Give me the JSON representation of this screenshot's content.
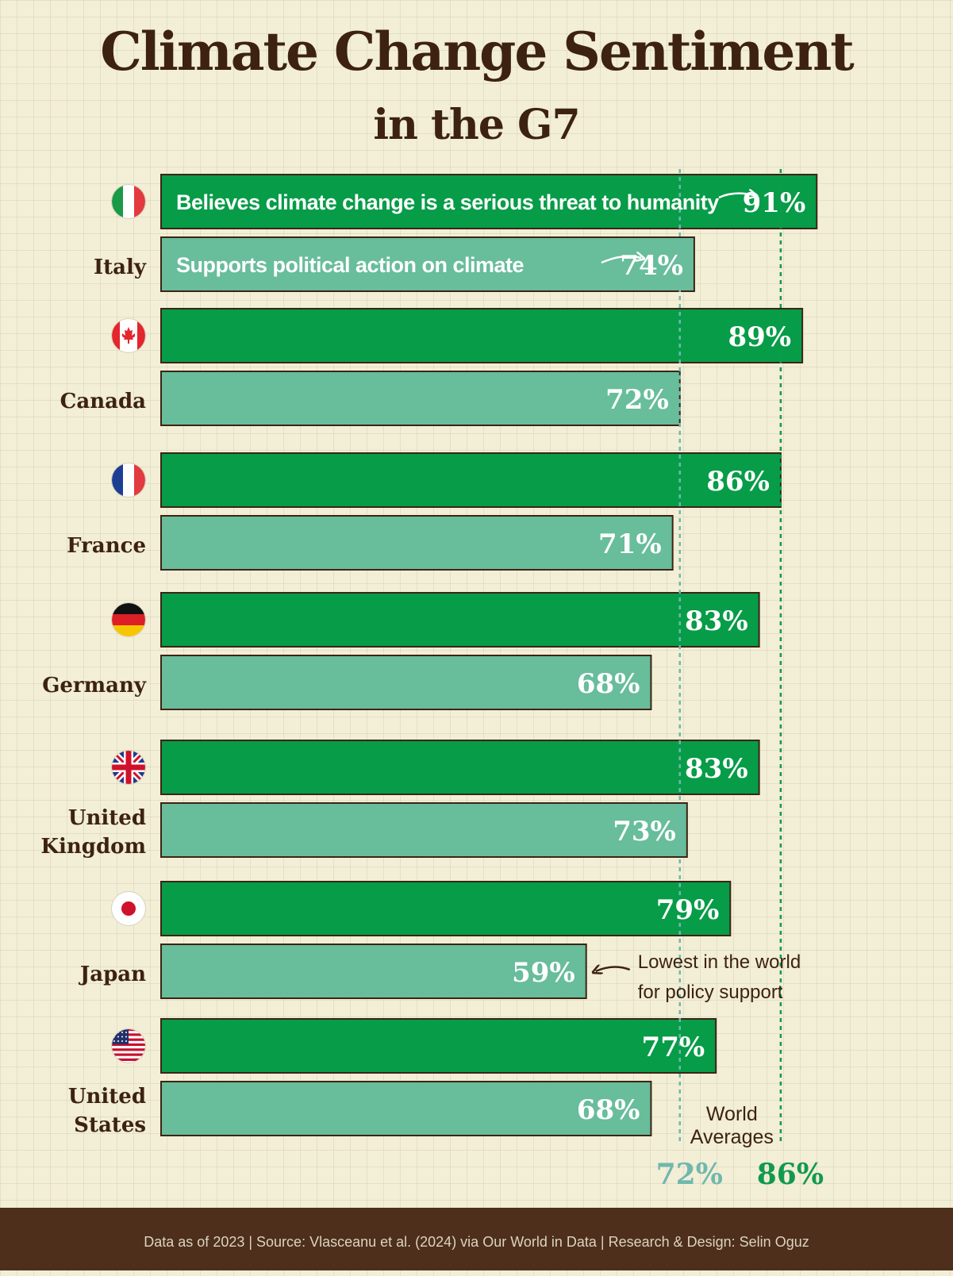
{
  "header": {
    "title": "Climate Change Sentiment",
    "subtitle": "in the G7"
  },
  "colors": {
    "threat": "#079c48",
    "action": "#68bd9b",
    "outline": "#3d2414",
    "text_dark": "#3d2212",
    "bar_text": "#ffffff",
    "avg_action": "#6fb8ad",
    "avg_threat": "#119a4d"
  },
  "chart_data": {
    "type": "bar",
    "orientation": "horizontal",
    "title": "Climate Change Sentiment in the G7",
    "categories": [
      "Italy",
      "Canada",
      "France",
      "Germany",
      "United Kingdom",
      "Japan",
      "United States"
    ],
    "category_lines": [
      [
        "Italy"
      ],
      [
        "Canada"
      ],
      [
        "France"
      ],
      [
        "Germany"
      ],
      [
        "United",
        "Kingdom"
      ],
      [
        "Japan"
      ],
      [
        "United",
        "States"
      ]
    ],
    "flags": [
      "italy-flag",
      "canada-flag",
      "france-flag",
      "germany-flag",
      "uk-flag",
      "japan-flag",
      "usa-flag"
    ],
    "series": [
      {
        "name": "Believes climate change is a serious threat to humanity",
        "values": [
          91,
          89,
          86,
          83,
          83,
          79,
          77
        ],
        "labels": [
          "91%",
          "89%",
          "86%",
          "83%",
          "83%",
          "79%",
          "77%"
        ]
      },
      {
        "name": "Supports political action on climate",
        "values": [
          74,
          72,
          71,
          68,
          73,
          59,
          68
        ],
        "labels": [
          "74%",
          "72%",
          "71%",
          "68%",
          "73%",
          "59%",
          "68%"
        ]
      }
    ],
    "xlim": [
      0,
      100
    ],
    "reference_lines": [
      {
        "label": "72%",
        "value": 72,
        "series": "Supports political action on climate"
      },
      {
        "label": "86%",
        "value": 86,
        "series": "Believes climate change is a serious threat to humanity"
      }
    ],
    "reference_caption": [
      "World",
      "Averages"
    ],
    "annotations": [
      {
        "category": "Japan",
        "series": "Supports political action on climate",
        "lines": [
          "Lowest in the world",
          "for policy support"
        ]
      }
    ]
  },
  "footer": {
    "text": "Data as of 2023 | Source: Vlasceanu et al. (2024) via Our World in Data | Research & Design: Selin Oguz"
  }
}
